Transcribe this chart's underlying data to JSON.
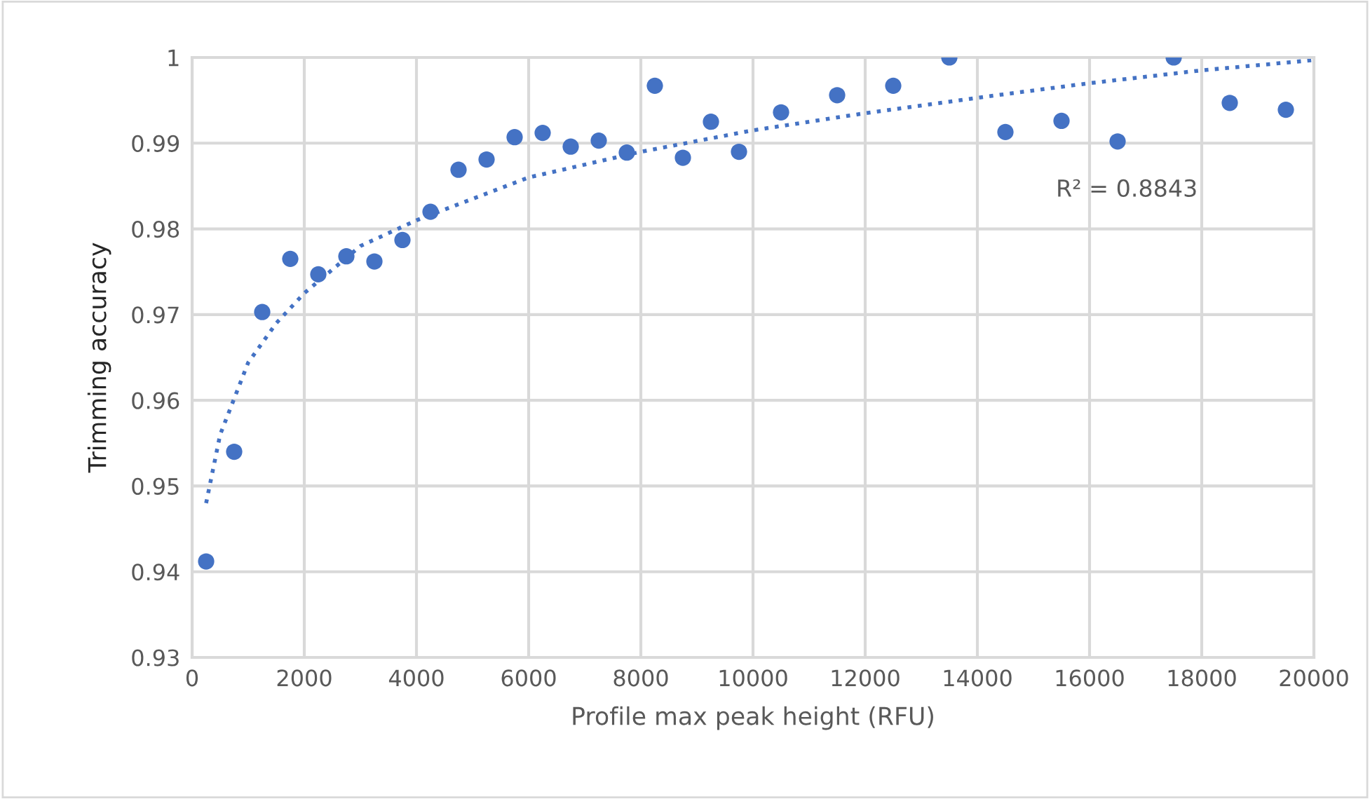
{
  "chart_data": {
    "type": "scatter",
    "xlabel": "Profile max peak height (RFU)",
    "ylabel": "Trimming accuracy",
    "xlim": [
      0,
      20000
    ],
    "xticks": [
      0,
      2000,
      4000,
      6000,
      8000,
      10000,
      12000,
      14000,
      16000,
      18000,
      20000
    ],
    "ylim": [
      0.93,
      1
    ],
    "yticks": [
      0.93,
      0.94,
      0.95,
      0.96,
      0.97,
      0.98,
      0.99,
      {
        "value": 1,
        "label": "1"
      }
    ],
    "grid": true,
    "legend": false,
    "annotations": [
      "R² = 0.8843"
    ],
    "series": [
      {
        "marker": "circle",
        "color": "#4472c4",
        "x": [
          250,
          750,
          1250,
          1750,
          2250,
          2750,
          3250,
          3750,
          4250,
          4750,
          5250,
          5750,
          6250,
          6750,
          7250,
          7750,
          8250,
          8750,
          9250,
          9750,
          10500,
          11500,
          12500,
          13500,
          14500,
          15500,
          16500,
          17500,
          18500,
          19500
        ],
        "values": [
          0.9412,
          0.954,
          0.9703,
          0.9765,
          0.9747,
          0.9768,
          0.9762,
          0.9787,
          0.982,
          0.9869,
          0.9881,
          0.9907,
          0.9912,
          0.9896,
          0.9903,
          0.9889,
          0.9967,
          0.9883,
          0.9925,
          0.989,
          0.9936,
          0.9956,
          0.9967,
          1.0,
          0.9913,
          0.9926,
          0.9902,
          1.0,
          0.9947,
          0.9939
        ]
      },
      {
        "type": "line",
        "marker": "none",
        "color": "#4472c4",
        "line_style": "dotted",
        "x": [
          250,
          500,
          1000,
          1500,
          2000,
          3000,
          4000,
          6000,
          8000,
          10000,
          12000,
          14000,
          16000,
          18000,
          20000
        ],
        "values": [
          0.948,
          0.956,
          0.9644,
          0.969,
          0.9725,
          0.978,
          0.981,
          0.986,
          0.989,
          0.9915,
          0.9935,
          0.9953,
          0.997,
          0.9985,
          0.9997
        ]
      }
    ]
  }
}
